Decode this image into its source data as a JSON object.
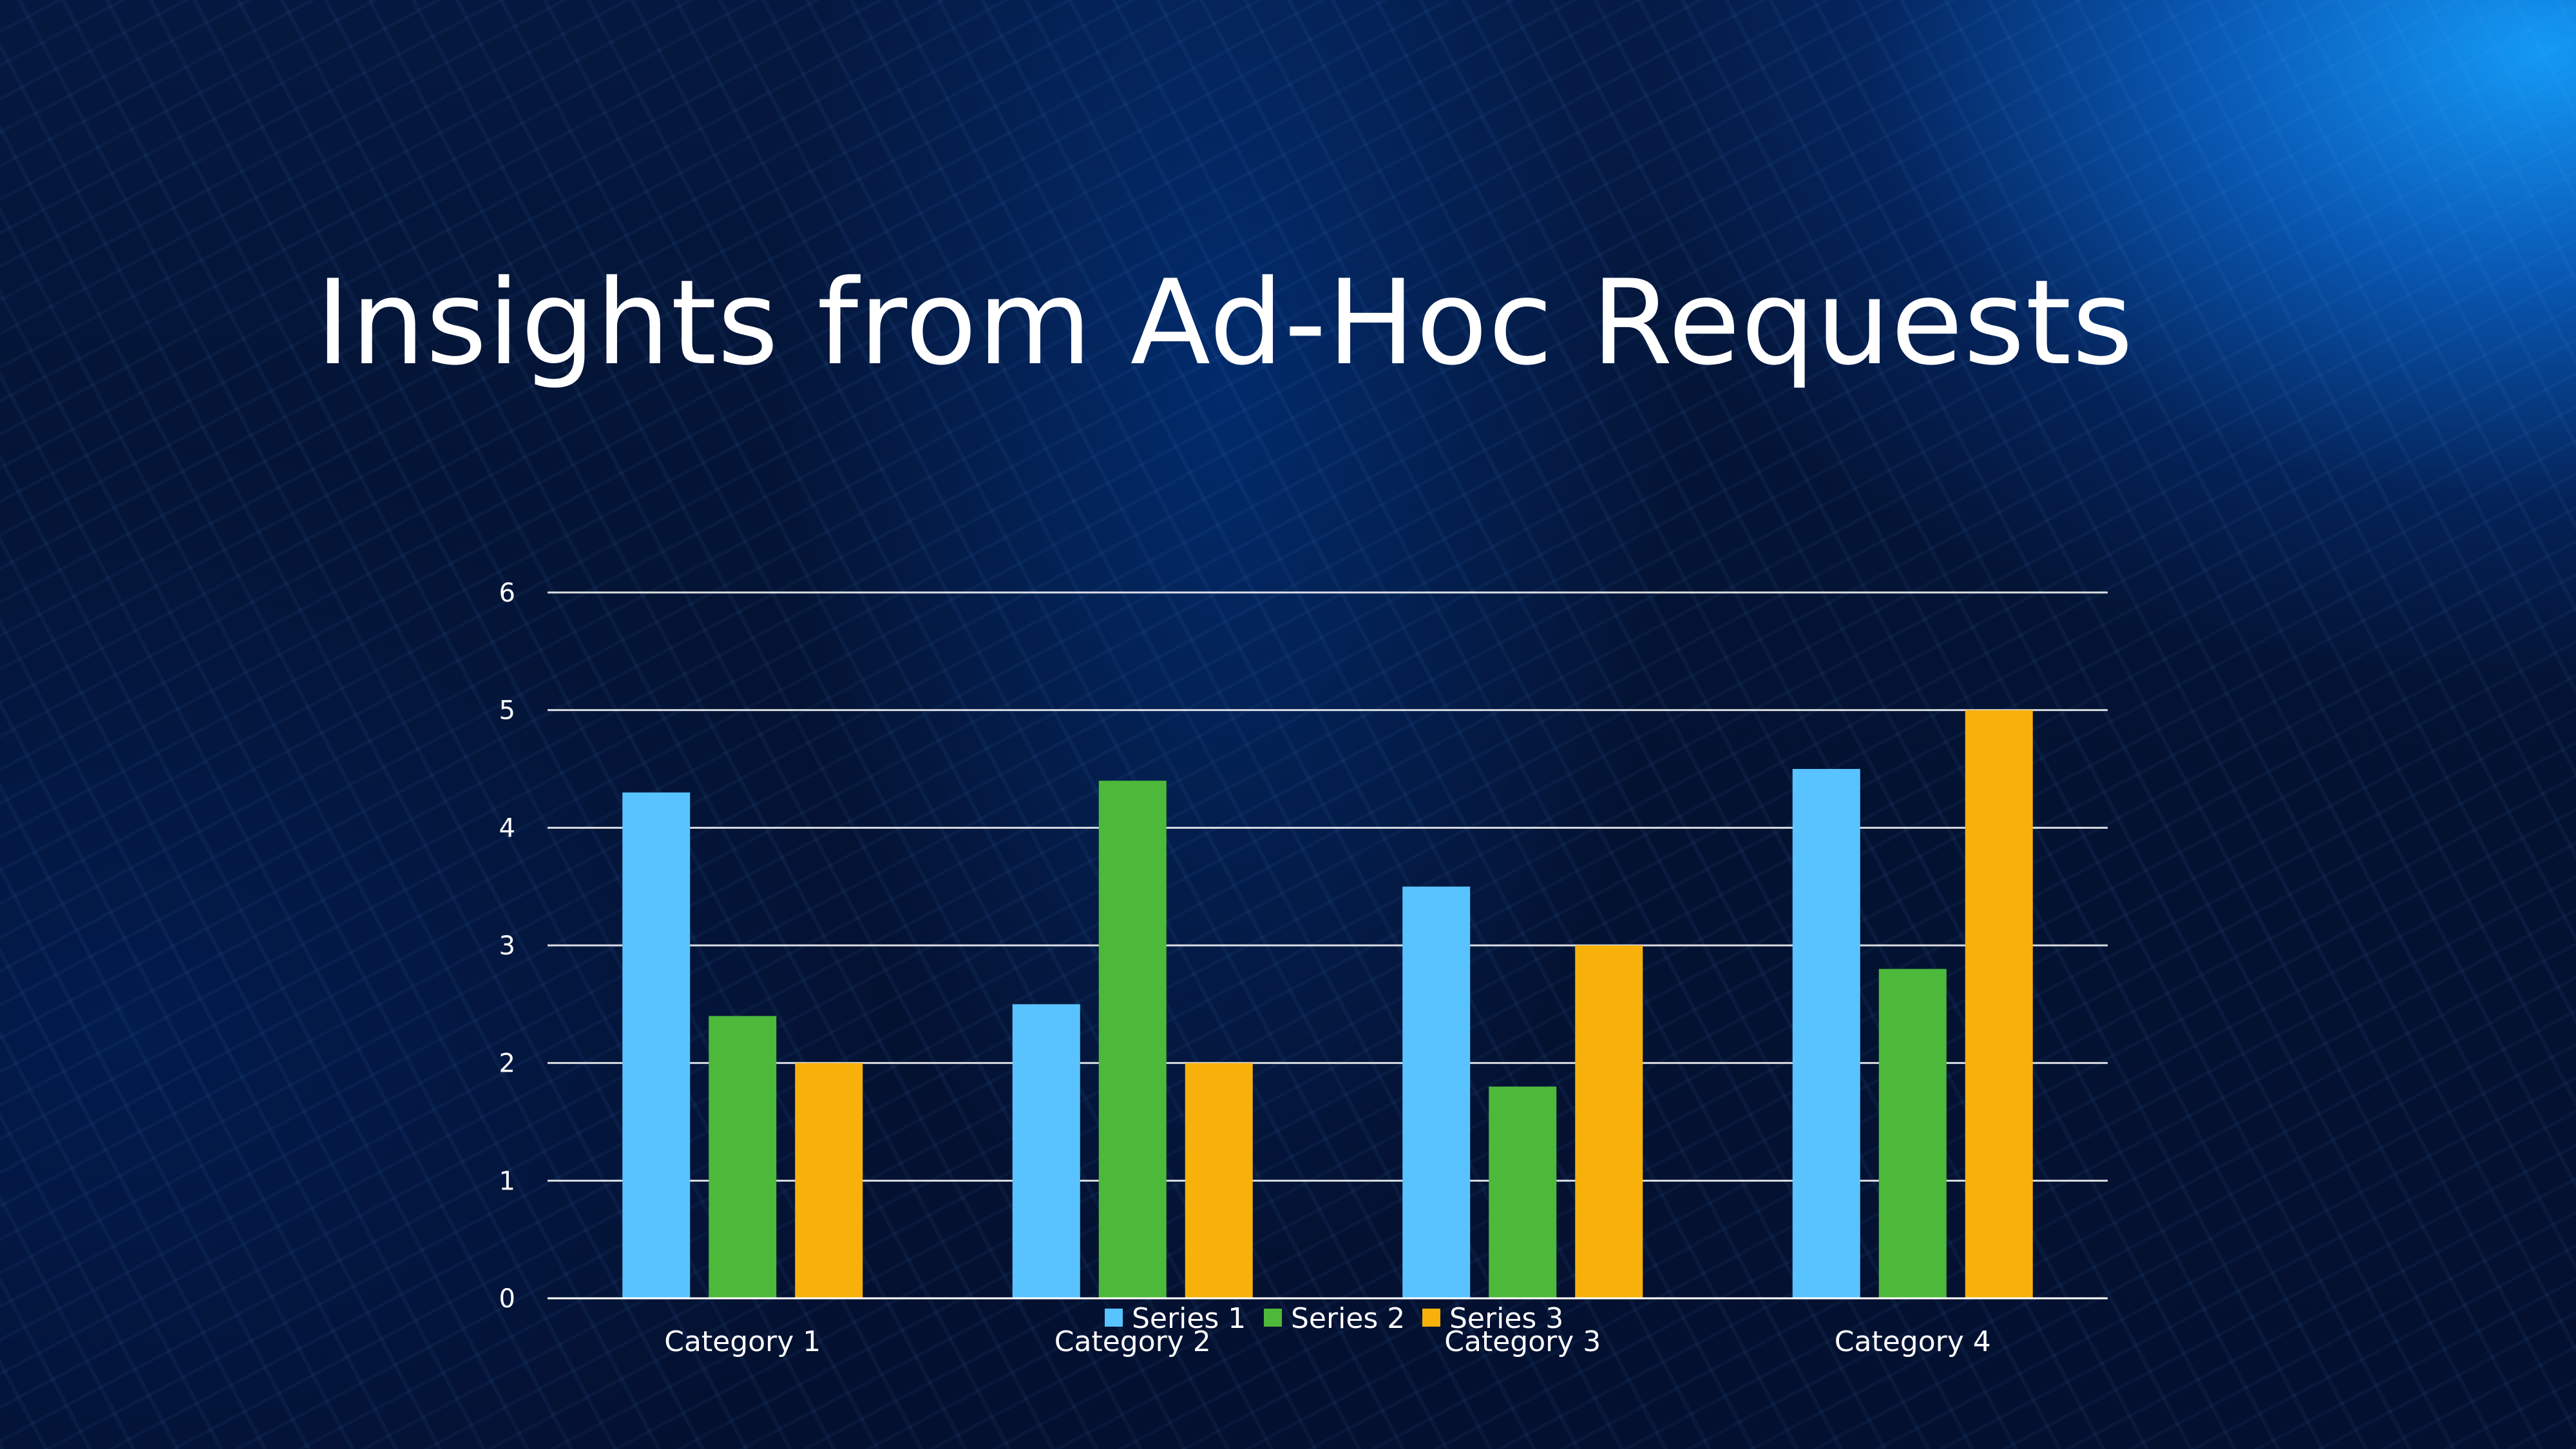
{
  "slide": {
    "title": "Insights from Ad-Hoc Requests"
  },
  "chart_data": {
    "type": "bar",
    "title": "",
    "xlabel": "",
    "ylabel": "",
    "categories": [
      "Category 1",
      "Category 2",
      "Category 3",
      "Category 4"
    ],
    "series": [
      {
        "name": "Series 1",
        "color": "#59C3FF",
        "values": [
          4.3,
          2.5,
          3.5,
          4.5
        ]
      },
      {
        "name": "Series 2",
        "color": "#4CB93A",
        "values": [
          2.4,
          4.4,
          1.8,
          2.8
        ]
      },
      {
        "name": "Series 3",
        "color": "#F8B10A",
        "values": [
          2,
          2,
          3,
          5
        ]
      }
    ],
    "ylim": [
      0,
      6
    ],
    "yticks": [
      0,
      1,
      2,
      3,
      4,
      5,
      6
    ],
    "grid": true,
    "legend": "bottom"
  }
}
